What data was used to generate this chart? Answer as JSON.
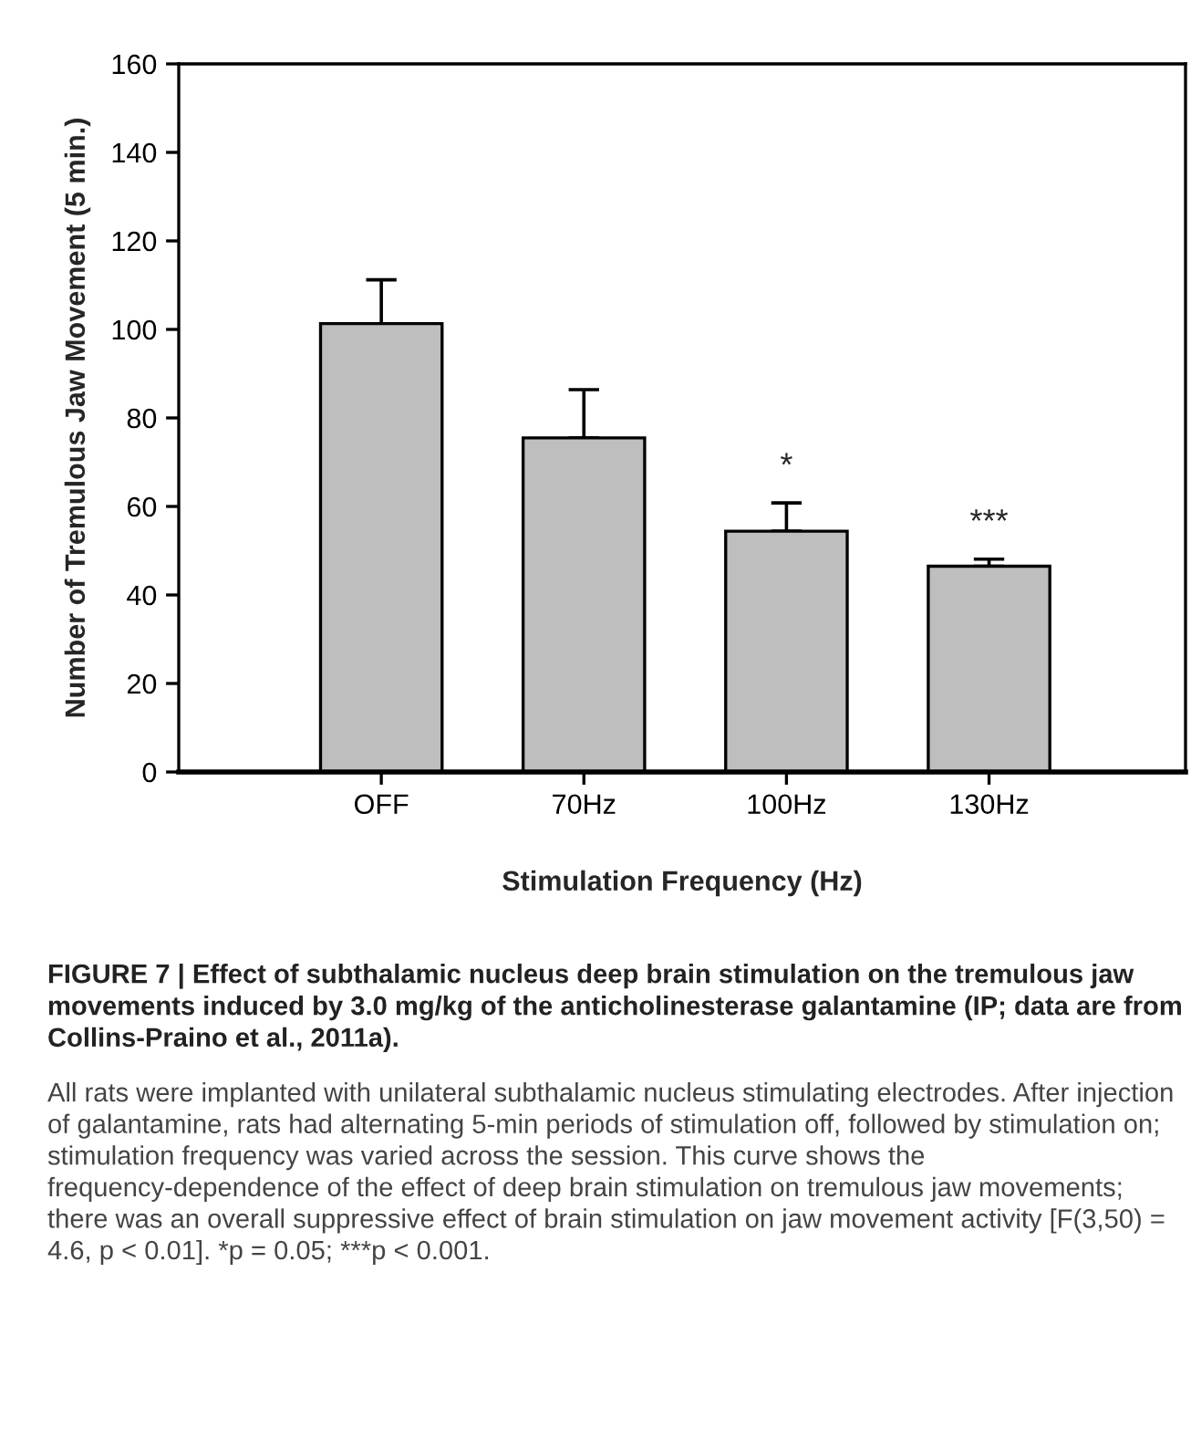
{
  "chart_data": {
    "type": "bar",
    "xlabel": "Stimulation Frequency (Hz)",
    "ylabel": "Number of Tremulous Jaw Movement (5 min.)",
    "categories": [
      "OFF",
      "70Hz",
      "100Hz",
      "130Hz"
    ],
    "values": [
      101.3,
      75.5,
      54.4,
      46.5
    ],
    "errors": [
      [
        101.3,
        111.2
      ],
      [
        75.5,
        86.4
      ],
      [
        54.4,
        60.8
      ],
      [
        46.5,
        48.1
      ]
    ],
    "value_labels": [
      null,
      null,
      "*",
      "***"
    ],
    "color": "#bebebe",
    "ylim": [
      0,
      160
    ],
    "yticks": [
      0,
      20,
      40,
      60,
      80,
      100,
      120,
      140,
      160
    ],
    "grid": false,
    "annotations": [
      "FIGURE 7 | Effect of subthalamic nucleus deep brain stimulation on the tremulous jaw movements induced by 3.0 mg/kg of the anticholinesterase galantamine (IP; data are from Collins-Praino et al., 2011a).",
      "All rats were implanted with unilateral subthalamic nucleus stimulating electrodes. After injection of galantamine, rats had alternating 5-min periods of stimulation off, followed by stimulation on; stimulation frequency was varied across the session. This curve shows the frequency-dependence of the effect of deep brain stimulation on tremulous jaw movements; there was an overall suppressive effect of brain stimulation on jaw movement activity [F(3,50) = 4.6, p < 0.01]. *p = 0.05; ***p < 0.001."
    ]
  }
}
